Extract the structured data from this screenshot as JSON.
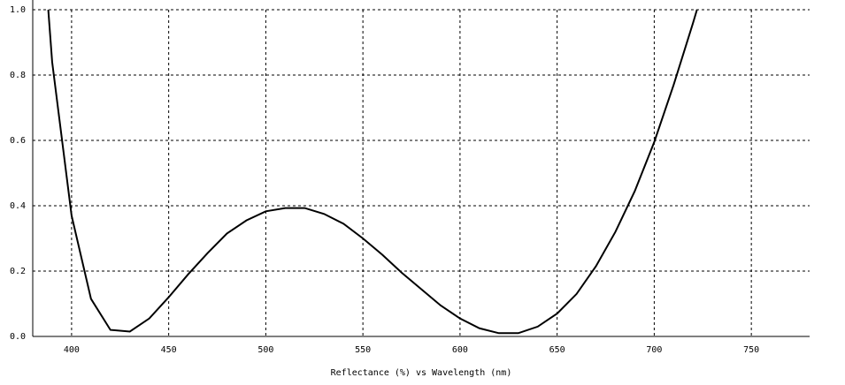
{
  "chart_data": {
    "type": "line",
    "x_label": "Reflectance (%)  vs  Wavelength (nm)",
    "x": [
      388,
      390,
      400,
      410,
      420,
      430,
      440,
      450,
      460,
      470,
      480,
      490,
      500,
      510,
      520,
      530,
      540,
      550,
      560,
      570,
      580,
      590,
      600,
      610,
      620,
      630,
      640,
      650,
      660,
      670,
      680,
      690,
      700,
      710,
      720,
      722
    ],
    "series": [
      {
        "color": "#000000",
        "values": [
          1.0,
          0.84,
          0.37,
          0.115,
          0.02,
          0.015,
          0.055,
          0.12,
          0.19,
          0.255,
          0.315,
          0.355,
          0.383,
          0.393,
          0.393,
          0.375,
          0.345,
          0.3,
          0.25,
          0.195,
          0.145,
          0.095,
          0.055,
          0.025,
          0.01,
          0.01,
          0.03,
          0.07,
          0.13,
          0.215,
          0.32,
          0.445,
          0.595,
          0.77,
          0.96,
          1.0
        ]
      }
    ],
    "xlim": [
      380,
      780
    ],
    "ylim": [
      0,
      1
    ],
    "xticks": [
      400,
      450,
      500,
      550,
      600,
      650,
      700,
      750
    ],
    "yticks": [
      {
        "value": 0,
        "label": "0.0"
      },
      0.2,
      0.4,
      0.6,
      0.8,
      {
        "value": 1,
        "label": "1.0"
      }
    ],
    "grid": true
  }
}
